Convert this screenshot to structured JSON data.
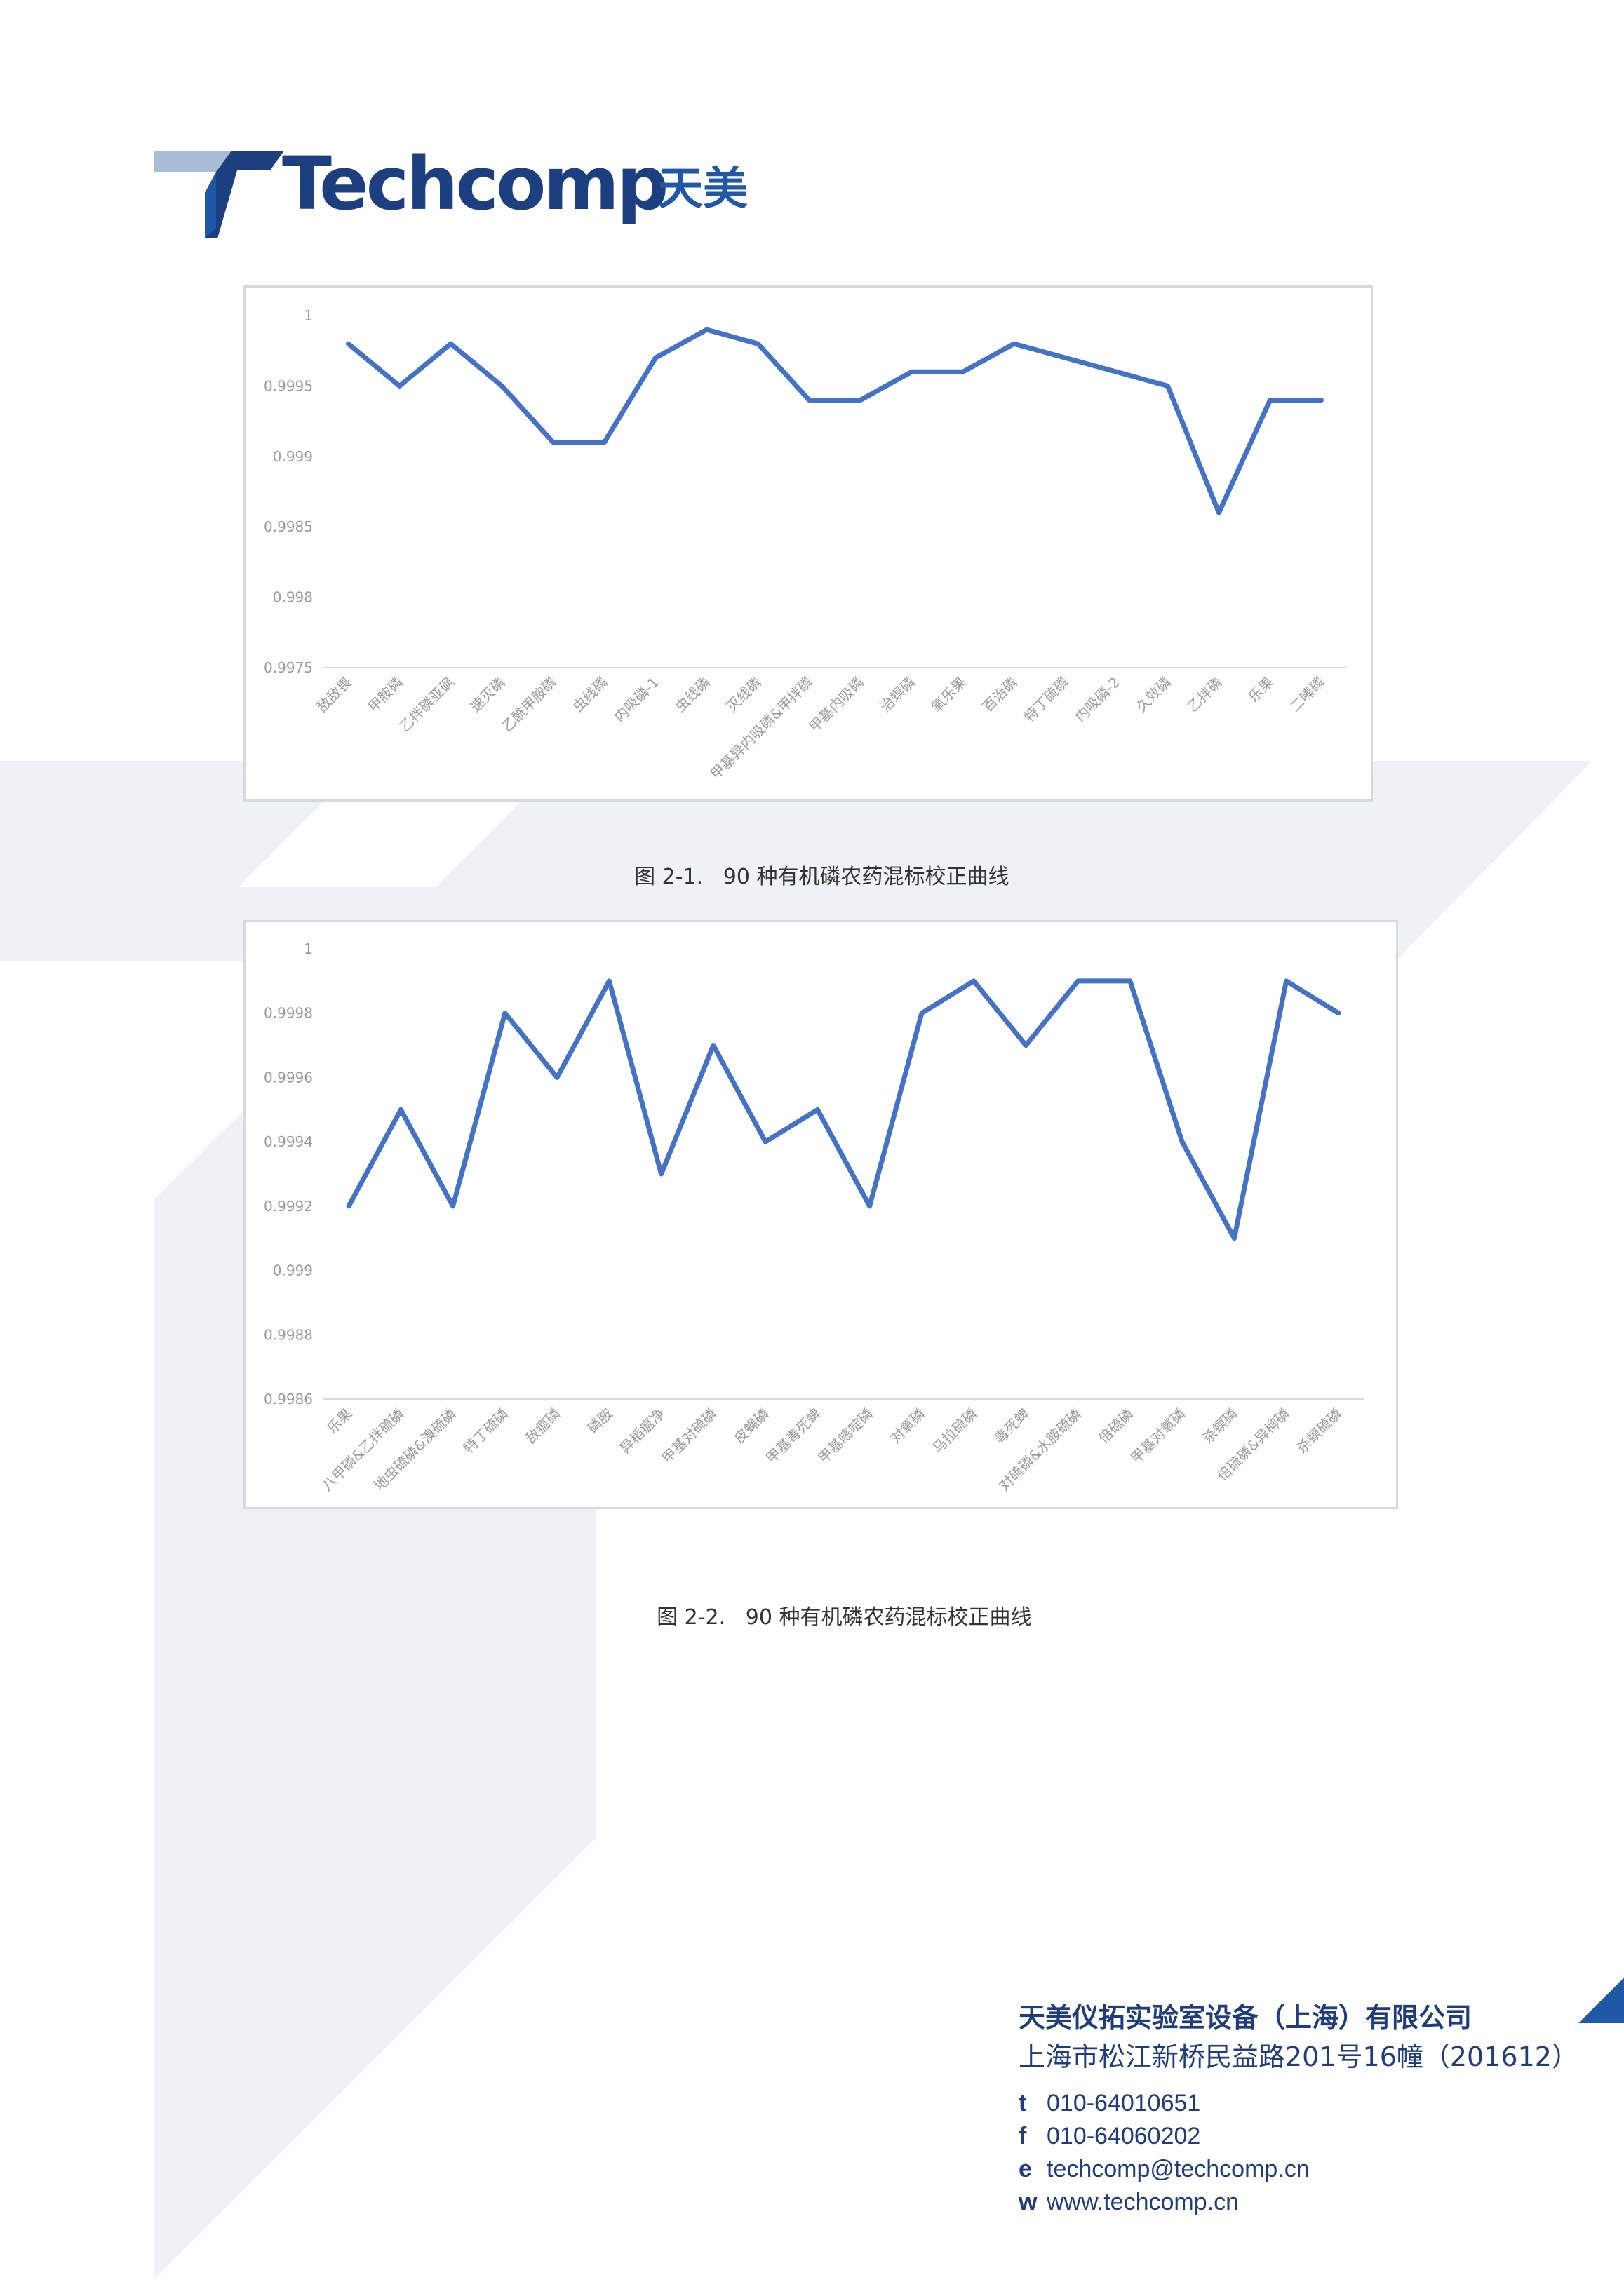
{
  "brand": {
    "logo_text": "Techcomp",
    "logo_cn": "天美",
    "colors": {
      "dark_blue": "#1c3f7f",
      "mid_blue": "#2058a8",
      "light_blue": "#a9bed6",
      "bg_shape": "#eef2f7",
      "line": "#4472c4"
    }
  },
  "captions": {
    "fig1_num": "图 2-1.",
    "fig1_text": "90 种有机磷农药混标校正曲线",
    "fig2_num": "图 2-2.",
    "fig2_text": "90 种有机磷农药混标校正曲线"
  },
  "chart_data": [
    {
      "type": "line",
      "title": "",
      "xlabel": "",
      "ylabel": "",
      "ylim": [
        0.9975,
        1
      ],
      "yticks": [
        "1",
        "0.9995",
        "0.999",
        "0.9985",
        "0.998",
        "0.9975"
      ],
      "grid": false,
      "categories": [
        "敌敌畏",
        "甲胺磷",
        "乙拌磷亚砜",
        "速灭磷",
        "乙酰甲胺磷",
        "虫线磷",
        "内吸磷-1",
        "虫线磷",
        "灭线磷",
        "甲基异内吸磷&甲拌磷",
        "甲基内吸磷",
        "治螟磷",
        "氧乐果",
        "百治磷",
        "特丁硫磷",
        "内吸磷-2",
        "久效磷",
        "乙拌磷",
        "乐果",
        "二嗪磷"
      ],
      "series": [
        {
          "values": [
            0.9998,
            0.9995,
            0.9998,
            0.9995,
            0.9991,
            0.9991,
            0.9997,
            0.9999,
            0.9998,
            0.9994,
            0.9994,
            0.9996,
            0.9996,
            0.9998,
            0.9997,
            0.9996,
            0.9995,
            0.9986,
            0.9994,
            0.9994
          ]
        }
      ]
    },
    {
      "type": "line",
      "title": "",
      "xlabel": "",
      "ylabel": "",
      "ylim": [
        0.9986,
        1
      ],
      "yticks": [
        "1",
        "0.9998",
        "0.9996",
        "0.9994",
        "0.9992",
        "0.999",
        "0.9988",
        "0.9986"
      ],
      "grid": false,
      "categories": [
        "乐果",
        "八甲磷&乙拌硫磷",
        "地虫硫磷&溴硫磷",
        "特丁硫磷",
        "敌瘟磷",
        "磷胺",
        "异稻瘟净",
        "甲基对硫磷",
        "皮蝇磷",
        "甲基毒死蜱",
        "甲基嘧啶磷",
        "对氧磷",
        "马拉硫磷",
        "毒死蜱",
        "对硫磷&水胺硫磷",
        "倍硫磷",
        "甲基对氧磷",
        "杀螟磷",
        "倍硫磷&异柳磷",
        "杀螟硫磷"
      ],
      "series": [
        {
          "values": [
            0.9992,
            0.9995,
            0.9992,
            0.9998,
            0.9996,
            0.9999,
            0.9993,
            0.9997,
            0.9994,
            0.9995,
            0.9992,
            0.9998,
            0.9999,
            0.9997,
            0.9999,
            0.9999,
            0.9994,
            0.9991,
            0.9999,
            0.9998
          ]
        }
      ]
    }
  ],
  "footer": {
    "company": "天美仪拓实验室设备（上海）有限公司",
    "address": "上海市松江新桥民益路201号16幢（201612）",
    "phone_label": "t",
    "phone": "010-64010651",
    "fax_label": "f",
    "fax": "010-64060202",
    "email_label": "e",
    "email": "techcomp@techcomp.cn",
    "web_label": "w",
    "web": "www.techcomp.cn"
  }
}
